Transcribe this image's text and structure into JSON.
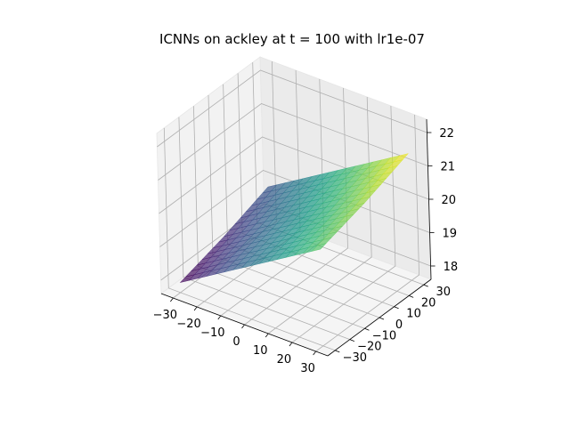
{
  "chart_data": {
    "type": "surface3d",
    "title": "ICNNs on ackley at t = 100 with lr1e-07",
    "xlabel": "",
    "ylabel": "",
    "zlabel": "",
    "x_ticks": [
      -30,
      -20,
      -10,
      0,
      10,
      20,
      30
    ],
    "y_ticks": [
      -30,
      -20,
      -10,
      0,
      10,
      20,
      30
    ],
    "z_ticks": [
      18,
      19,
      20,
      21,
      22
    ],
    "x_range": [
      -35,
      35
    ],
    "y_range": [
      -35,
      35
    ],
    "z_range": [
      17.6,
      22.4
    ],
    "colormap": "viridis",
    "surface_alpha": 0.7,
    "grid": true,
    "surface": {
      "x": [
        -30,
        0,
        30
      ],
      "y": [
        -30,
        0,
        30
      ],
      "z": [
        [
          17.9,
          19.2,
          20.5
        ],
        [
          18.3,
          19.6,
          20.9
        ],
        [
          18.8,
          20.1,
          21.4
        ]
      ]
    }
  }
}
